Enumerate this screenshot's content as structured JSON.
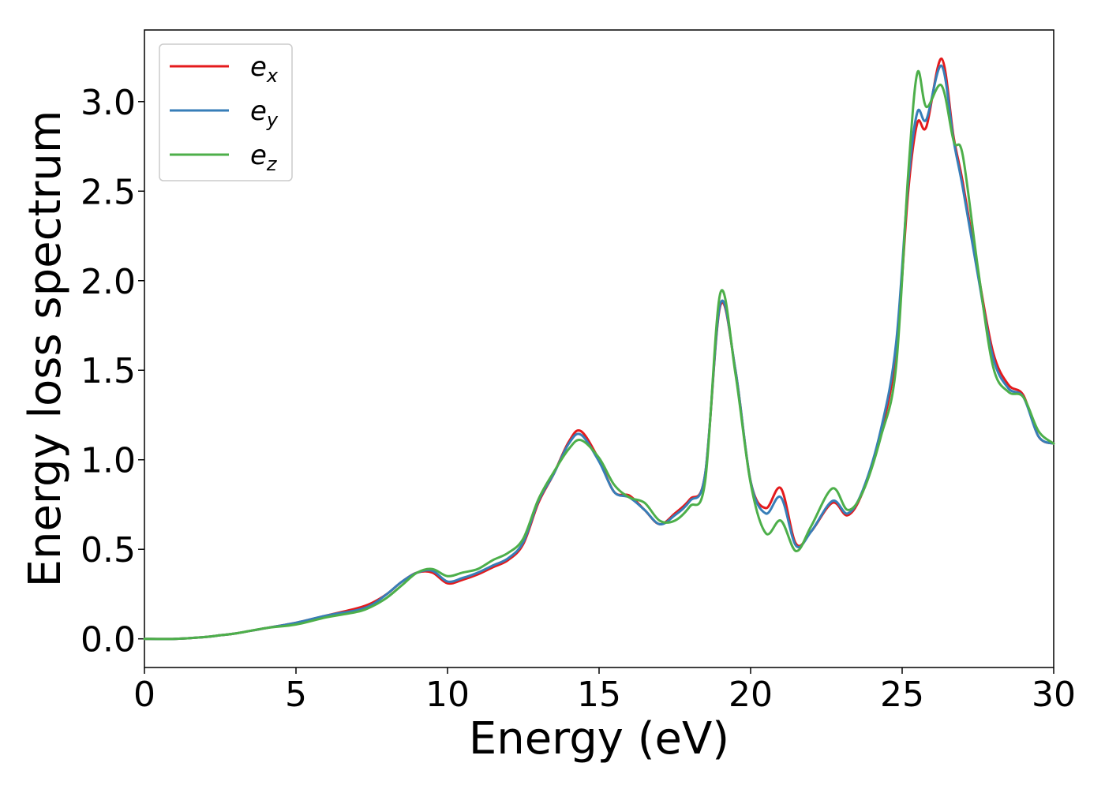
{
  "chart_data": {
    "type": "line",
    "xlabel": "Energy (eV)",
    "ylabel": "Energy loss spectrum",
    "xlim": [
      0,
      30
    ],
    "ylim": [
      -0.16,
      3.4
    ],
    "xticks": [
      "0",
      "5",
      "10",
      "15",
      "20",
      "25",
      "30"
    ],
    "yticks": [
      "0.0",
      "0.5",
      "1.0",
      "1.5",
      "2.0",
      "2.5",
      "3.0"
    ],
    "grid": false,
    "legend_position": "top-left",
    "series": [
      {
        "name": "e",
        "subscript": "x",
        "color": "#e41a1c",
        "x": [
          0,
          1,
          2,
          2.5,
          3,
          4,
          5,
          6,
          7,
          7.5,
          8,
          8.5,
          9,
          9.5,
          10,
          10.5,
          11,
          11.5,
          12,
          12.5,
          13,
          13.5,
          14,
          14.4,
          15,
          15.5,
          16,
          16.5,
          17,
          17.5,
          18,
          18.5,
          19,
          19.5,
          20,
          20.5,
          21,
          21.5,
          22,
          22.7,
          23.2,
          23.7,
          24.3,
          24.8,
          25.2,
          25.5,
          25.8,
          26.3,
          26.7,
          27,
          27.5,
          28,
          28.5,
          29,
          29.5,
          30
        ],
        "values": [
          0.0,
          0.0,
          0.01,
          0.02,
          0.03,
          0.06,
          0.09,
          0.13,
          0.17,
          0.2,
          0.25,
          0.32,
          0.37,
          0.37,
          0.31,
          0.33,
          0.36,
          0.4,
          0.44,
          0.53,
          0.76,
          0.92,
          1.1,
          1.16,
          1.0,
          0.82,
          0.8,
          0.72,
          0.64,
          0.7,
          0.78,
          0.92,
          1.86,
          1.5,
          0.88,
          0.73,
          0.84,
          0.53,
          0.6,
          0.76,
          0.69,
          0.82,
          1.15,
          1.6,
          2.5,
          2.88,
          2.86,
          3.24,
          2.8,
          2.55,
          2.05,
          1.6,
          1.42,
          1.36,
          1.13,
          1.09
        ]
      },
      {
        "name": "e",
        "subscript": "y",
        "color": "#377eb8",
        "x": [
          0,
          1,
          2,
          2.5,
          3,
          4,
          5,
          6,
          7,
          7.5,
          8,
          8.5,
          9,
          9.5,
          10,
          10.5,
          11,
          11.5,
          12,
          12.5,
          13,
          13.5,
          14,
          14.4,
          15,
          15.5,
          16,
          16.5,
          17,
          17.5,
          18,
          18.5,
          19,
          19.5,
          20,
          20.5,
          21,
          21.5,
          22,
          22.7,
          23.2,
          23.7,
          24.3,
          24.8,
          25.2,
          25.5,
          25.8,
          26.3,
          26.7,
          27,
          27.5,
          28,
          28.5,
          29,
          29.5,
          30
        ],
        "values": [
          0.0,
          0.0,
          0.01,
          0.02,
          0.03,
          0.06,
          0.09,
          0.13,
          0.16,
          0.19,
          0.25,
          0.32,
          0.37,
          0.38,
          0.32,
          0.34,
          0.37,
          0.41,
          0.45,
          0.54,
          0.77,
          0.92,
          1.09,
          1.14,
          0.99,
          0.82,
          0.79,
          0.72,
          0.64,
          0.69,
          0.77,
          0.92,
          1.87,
          1.5,
          0.88,
          0.7,
          0.79,
          0.52,
          0.6,
          0.77,
          0.7,
          0.83,
          1.17,
          1.65,
          2.55,
          2.94,
          2.9,
          3.2,
          2.78,
          2.52,
          2.03,
          1.57,
          1.4,
          1.35,
          1.13,
          1.09
        ]
      },
      {
        "name": "e",
        "subscript": "z",
        "color": "#4daf4a",
        "x": [
          0,
          1,
          2,
          2.5,
          3,
          4,
          5,
          6,
          7,
          7.5,
          8,
          8.5,
          9,
          9.5,
          10,
          10.5,
          11,
          11.5,
          12,
          12.5,
          13,
          13.5,
          14,
          14.4,
          15,
          15.5,
          16,
          16.5,
          17,
          17.5,
          18,
          18.5,
          19,
          19.5,
          20,
          20.5,
          21,
          21.5,
          22,
          22.7,
          23.2,
          23.7,
          24.3,
          24.8,
          25.2,
          25.5,
          25.8,
          26.3,
          26.7,
          27,
          27.5,
          28,
          28.5,
          29,
          29.5,
          30
        ],
        "values": [
          0.0,
          0.0,
          0.01,
          0.02,
          0.03,
          0.06,
          0.08,
          0.12,
          0.15,
          0.18,
          0.23,
          0.3,
          0.37,
          0.39,
          0.35,
          0.37,
          0.39,
          0.44,
          0.48,
          0.56,
          0.78,
          0.93,
          1.06,
          1.11,
          1.01,
          0.86,
          0.79,
          0.76,
          0.66,
          0.66,
          0.74,
          0.88,
          1.93,
          1.48,
          0.87,
          0.59,
          0.66,
          0.49,
          0.63,
          0.84,
          0.72,
          0.82,
          1.13,
          1.52,
          2.6,
          3.16,
          2.97,
          3.09,
          2.78,
          2.7,
          2.07,
          1.52,
          1.38,
          1.35,
          1.16,
          1.09
        ]
      }
    ]
  }
}
